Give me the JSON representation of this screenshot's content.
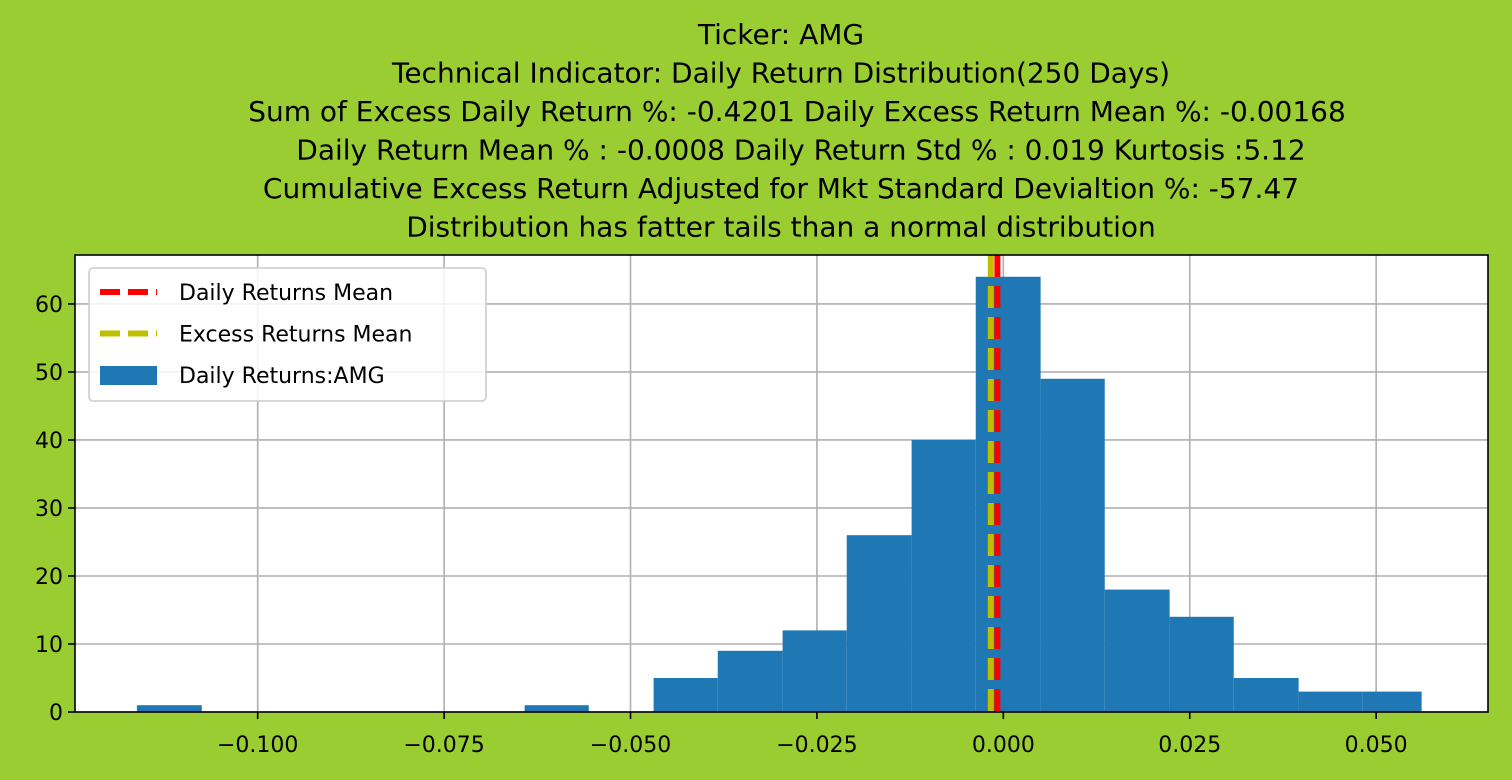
{
  "colors": {
    "background": "#9acd32",
    "bars": "#1f77b4",
    "daily_mean_line": "#ff0000",
    "excess_mean_line": "#bfbf00",
    "grid": "#b0b0b0"
  },
  "chart_data": {
    "type": "bar",
    "title_lines": [
      "Ticker: AMG",
      "Technical Indicator: Daily Return Distribution(250 Days)",
      "Sum of Excess Daily Return %: -0.4201   Daily Excess Return Mean %: -0.00168",
      "Daily Return Mean % : -0.0008    Daily Return Std % : 0.019  Kurtosis :5.12",
      "Cumulative Excess Return Adjusted for Mkt Standard Devialtion %: -57.47",
      "Distribution has fatter tails than a normal distribution"
    ],
    "xlim": [
      -0.1245,
      0.065
    ],
    "ylim": [
      0,
      67.2
    ],
    "grid": true,
    "legend_placement": "upper-left",
    "x_ticks": [
      {
        "value": -0.1,
        "label": "−0.100"
      },
      {
        "value": -0.075,
        "label": "−0.075"
      },
      {
        "value": -0.05,
        "label": "−0.050"
      },
      {
        "value": -0.025,
        "label": "−0.025"
      },
      {
        "value": 0.0,
        "label": "0.000"
      },
      {
        "value": 0.025,
        "label": "0.025"
      },
      {
        "value": 0.05,
        "label": "0.050"
      }
    ],
    "y_ticks": [
      {
        "value": 0,
        "label": "0"
      },
      {
        "value": 10,
        "label": "10"
      },
      {
        "value": 20,
        "label": "20"
      },
      {
        "value": 30,
        "label": "30"
      },
      {
        "value": 40,
        "label": "40"
      },
      {
        "value": 50,
        "label": "50"
      },
      {
        "value": 60,
        "label": "60"
      }
    ],
    "bins": [
      {
        "x0": -0.1162,
        "x1": -0.1075,
        "count": 1
      },
      {
        "x0": -0.1075,
        "x1": -0.0988,
        "count": 0
      },
      {
        "x0": -0.0988,
        "x1": -0.0902,
        "count": 0
      },
      {
        "x0": -0.0902,
        "x1": -0.0815,
        "count": 0
      },
      {
        "x0": -0.0815,
        "x1": -0.0729,
        "count": 0
      },
      {
        "x0": -0.0729,
        "x1": -0.0642,
        "count": 0
      },
      {
        "x0": -0.0642,
        "x1": -0.0556,
        "count": 1
      },
      {
        "x0": -0.0556,
        "x1": -0.0469,
        "count": 0
      },
      {
        "x0": -0.0469,
        "x1": -0.0383,
        "count": 5
      },
      {
        "x0": -0.0383,
        "x1": -0.0296,
        "count": 9
      },
      {
        "x0": -0.0296,
        "x1": -0.021,
        "count": 12
      },
      {
        "x0": -0.021,
        "x1": -0.0123,
        "count": 26
      },
      {
        "x0": -0.0123,
        "x1": -0.0037,
        "count": 40
      },
      {
        "x0": -0.0037,
        "x1": 0.005,
        "count": 64
      },
      {
        "x0": 0.005,
        "x1": 0.0136,
        "count": 49
      },
      {
        "x0": 0.0136,
        "x1": 0.0223,
        "count": 18
      },
      {
        "x0": 0.0223,
        "x1": 0.0309,
        "count": 14
      },
      {
        "x0": 0.0309,
        "x1": 0.0396,
        "count": 5
      },
      {
        "x0": 0.0396,
        "x1": 0.0482,
        "count": 3
      },
      {
        "x0": 0.0482,
        "x1": 0.0561,
        "count": 3
      }
    ],
    "vlines": [
      {
        "name": "Daily Returns Mean",
        "x": -0.0008,
        "color": "#ff0000"
      },
      {
        "name": "Excess Returns Mean",
        "x": -0.00168,
        "color": "#bfbf00"
      }
    ],
    "legend": [
      {
        "label": "Daily Returns Mean",
        "kind": "dashed-line",
        "color": "#ff0000"
      },
      {
        "label": "Excess Returns Mean",
        "kind": "dashed-line",
        "color": "#bfbf00"
      },
      {
        "label": "Daily Returns:AMG",
        "kind": "patch",
        "color": "#1f77b4"
      }
    ]
  }
}
